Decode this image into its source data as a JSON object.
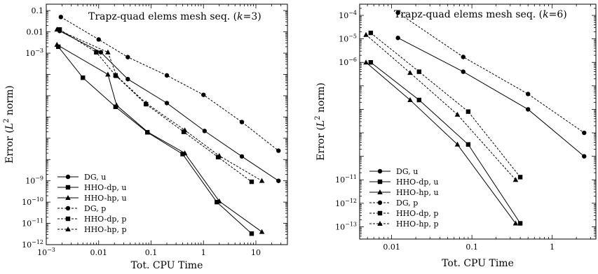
{
  "chart_data": [
    {
      "type": "line",
      "title": "Trapz-quad elems mesh seq. (k=3)",
      "title_parts": {
        "pre": "Trapz-quad elems mesh seq. (",
        "var": "k",
        "post": "=3)"
      },
      "xlabel": "Tot. CPU Time",
      "ylabel": "Error (L2 norm)",
      "ylabel_parts": {
        "pre": "Error (",
        "var": "L",
        "sup": "2",
        "post": " norm)"
      },
      "x_scale": "log",
      "y_scale": "log",
      "xlim": [
        0.001,
        40
      ],
      "ylim": [
        1e-12,
        0.2
      ],
      "xticks": [
        {
          "value": 0.001,
          "base": "10",
          "exp": "−3"
        },
        {
          "value": 0.01,
          "text": "0.01"
        },
        {
          "value": 0.1,
          "text": "0.1"
        },
        {
          "value": 1,
          "text": "1"
        },
        {
          "value": 10,
          "text": "10"
        }
      ],
      "yticks": [
        {
          "value": 0.1,
          "text": "0.1"
        },
        {
          "value": 0.01,
          "text": "0.01"
        },
        {
          "value": 0.001,
          "base": "10",
          "exp": "−3"
        },
        {
          "value": 1e-09,
          "base": "10",
          "exp": "−9"
        },
        {
          "value": 1e-10,
          "base": "10",
          "exp": "−10"
        },
        {
          "value": 1e-11,
          "base": "10",
          "exp": "−11"
        },
        {
          "value": 1e-12,
          "base": "10",
          "exp": "−12"
        }
      ],
      "legend_position": "lower-left",
      "series": [
        {
          "name": "DG, u",
          "marker": "circle",
          "dash": "solid",
          "x": [
            0.0018,
            0.011,
            0.036,
            0.2,
            1.05,
            5.4,
            27
          ],
          "y": [
            0.011,
            0.0011,
            6e-05,
            4.5e-06,
            2.2e-07,
            1.4e-08,
            1e-09
          ]
        },
        {
          "name": "HHO-dp, u",
          "marker": "square",
          "dash": "solid",
          "x": [
            0.0017,
            0.005,
            0.021,
            0.085,
            0.4,
            1.8,
            8.3
          ],
          "y": [
            0.002,
            7e-05,
            3e-06,
            1.9e-07,
            1.8e-08,
            1e-10,
            3.3e-12
          ]
        },
        {
          "name": "HHO-hp, u",
          "marker": "triangle",
          "dash": "solid",
          "x": [
            0.0016,
            0.015,
            0.022,
            0.088,
            0.44,
            2.0,
            13
          ],
          "y": [
            0.0025,
            0.0001,
            3.5e-06,
            1.9e-07,
            2e-08,
            1.1e-10,
            4e-12
          ]
        },
        {
          "name": "DG, p",
          "marker": "circle",
          "dash": "dashed",
          "x": [
            0.0019,
            0.01,
            0.036,
            0.2,
            1.0,
            5.4,
            27
          ],
          "y": [
            0.05,
            0.0044,
            0.00065,
            9e-05,
            1.1e-05,
            5.8e-07,
            2.6e-08
          ]
        },
        {
          "name": "HHO-dp, p",
          "marker": "square",
          "dash": "dashed",
          "x": [
            0.0018,
            0.009,
            0.021,
            0.08,
            0.42,
            1.9,
            8.3
          ],
          "y": [
            0.013,
            0.0011,
            9e-05,
            4e-06,
            2e-07,
            1.3e-08,
            9e-10
          ]
        },
        {
          "name": "HHO-hp, p",
          "marker": "triangle",
          "dash": "dashed",
          "x": [
            0.0016,
            0.015,
            0.022,
            0.08,
            0.44,
            2.0,
            13
          ],
          "y": [
            0.013,
            0.0011,
            8.5e-05,
            4.5e-06,
            2.4e-07,
            1.5e-08,
            1e-09
          ]
        }
      ]
    },
    {
      "type": "line",
      "title": "Trapz-quad elems mesh seq. (k=6)",
      "title_parts": {
        "pre": "Trapz-quad elems mesh seq. (",
        "var": "k",
        "post": "=6)"
      },
      "xlabel": "Tot. CPU Time",
      "ylabel": "Error (L2 norm)",
      "ylabel_parts": {
        "pre": "Error (",
        "var": "L",
        "sup": "2",
        "post": " norm)"
      },
      "x_scale": "log",
      "y_scale": "log",
      "xlim": [
        0.004,
        3.5
      ],
      "ylim": [
        3e-14,
        0.0003
      ],
      "xticks": [
        {
          "value": 0.01,
          "text": "0.01"
        },
        {
          "value": 0.1,
          "text": "0.1"
        },
        {
          "value": 1,
          "text": "1"
        }
      ],
      "yticks": [
        {
          "value": 0.0001,
          "base": "10",
          "exp": "−4"
        },
        {
          "value": 1e-05,
          "base": "10",
          "exp": "−5"
        },
        {
          "value": 1e-06,
          "base": "10",
          "exp": "−6"
        },
        {
          "value": 1e-11,
          "base": "10",
          "exp": "−11"
        },
        {
          "value": 1e-12,
          "base": "10",
          "exp": "−12"
        },
        {
          "value": 1e-13,
          "base": "10",
          "exp": "−13"
        }
      ],
      "legend_position": "lower-left",
      "series": [
        {
          "name": "DG, u",
          "marker": "circle",
          "dash": "solid",
          "x": [
            0.012,
            0.078,
            0.5,
            2.5
          ],
          "y": [
            1.1e-05,
            4e-07,
            1e-08,
            1e-10
          ]
        },
        {
          "name": "HHO-dp, u",
          "marker": "square",
          "dash": "solid",
          "x": [
            0.0055,
            0.022,
            0.09,
            0.4
          ],
          "y": [
            1e-06,
            2.5e-08,
            3.2e-10,
            1.4e-13
          ]
        },
        {
          "name": "HHO-hp, u",
          "marker": "triangle",
          "dash": "solid",
          "x": [
            0.0048,
            0.017,
            0.066,
            0.35
          ],
          "y": [
            1e-06,
            2.5e-08,
            3.2e-10,
            1.4e-13
          ]
        },
        {
          "name": "DG, p",
          "marker": "circle",
          "dash": "dashed",
          "x": [
            0.012,
            0.078,
            0.5,
            2.5
          ],
          "y": [
            0.00013,
            1.7e-06,
            4.5e-08,
            1e-09
          ]
        },
        {
          "name": "HHO-dp, p",
          "marker": "square",
          "dash": "dashed",
          "x": [
            0.0055,
            0.022,
            0.09,
            0.4
          ],
          "y": [
            1.8e-05,
            4e-07,
            8e-09,
            1.3e-11
          ]
        },
        {
          "name": "HHO-hp, p",
          "marker": "triangle",
          "dash": "dashed",
          "x": [
            0.0048,
            0.017,
            0.066,
            0.35
          ],
          "y": [
            1.5e-05,
            3.6e-07,
            6e-09,
            1e-11
          ]
        }
      ]
    }
  ]
}
